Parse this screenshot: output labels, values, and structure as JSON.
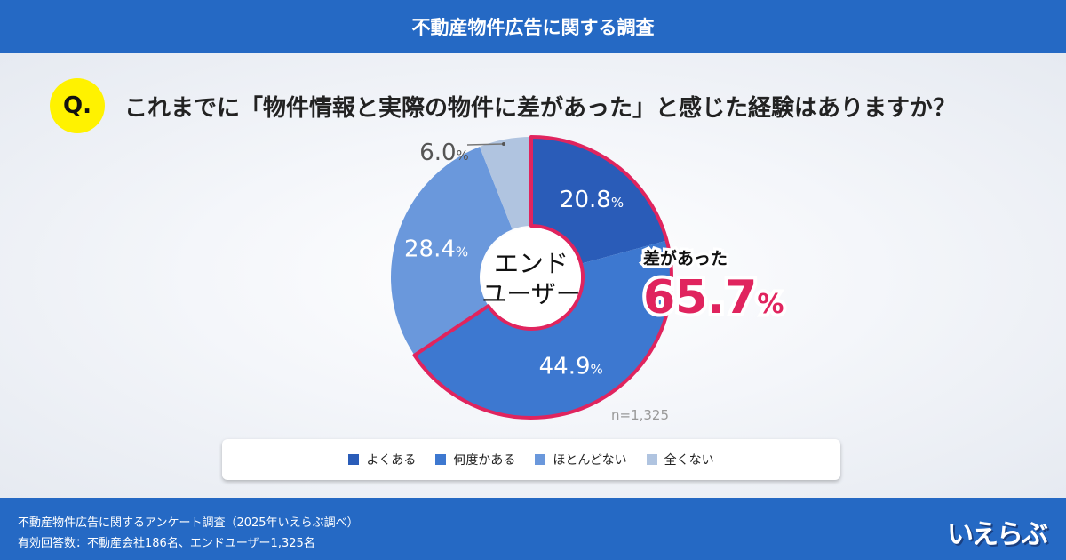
{
  "header": {
    "title": "不動産物件広告に関する調査"
  },
  "question": {
    "badge": "Q.",
    "text": "これまでに「物件情報と実際の物件に差があった」と感じた経験はありますか？"
  },
  "chart_data": {
    "type": "pie",
    "donut": true,
    "center_label": [
      "エンド",
      "ユーザー"
    ],
    "categories": [
      "よくある",
      "何度かある",
      "ほとんどない",
      "全くない"
    ],
    "values": [
      20.8,
      44.9,
      28.4,
      6.0
    ],
    "unit": "%",
    "colors": [
      "#2a5cb8",
      "#3d78d0",
      "#6a98dc",
      "#b0c4e0"
    ],
    "highlight": {
      "label": "差があった",
      "value": "65.7",
      "unit": "%",
      "color": "#e0245e",
      "categories": [
        "よくある",
        "何度かある"
      ]
    },
    "n_label": "n=1,325",
    "legend_placement": "bottom"
  },
  "footer": {
    "line1": "不動産物件広告に関するアンケート調査（2025年いえらぶ調べ）",
    "line2": "有効回答数：不動産会社186名、エンドユーザー1,325名",
    "logo": "いえらぶ"
  }
}
